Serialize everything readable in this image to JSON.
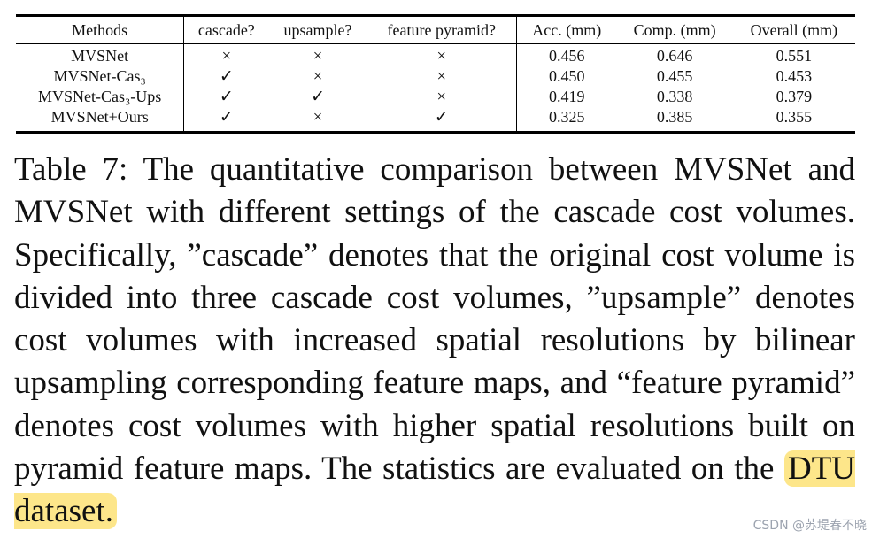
{
  "table": {
    "headers": [
      "Methods",
      "cascade?",
      "upsample?",
      "feature pyramid?",
      "Acc. (mm)",
      "Comp. (mm)",
      "Overall (mm)"
    ],
    "rows": [
      {
        "method": "MVSNet",
        "cascade": "×",
        "upsample": "×",
        "pyramid": "×",
        "acc": "0.456",
        "comp": "0.646",
        "overall": "0.551"
      },
      {
        "method": "MVSNet-Cas₃",
        "cascade": "✓",
        "upsample": "×",
        "pyramid": "×",
        "acc": "0.450",
        "comp": "0.455",
        "overall": "0.453"
      },
      {
        "method": "MVSNet-Cas₃-Ups",
        "cascade": "✓",
        "upsample": "✓",
        "pyramid": "×",
        "acc": "0.419",
        "comp": "0.338",
        "overall": "0.379"
      },
      {
        "method": "MVSNet+Ours",
        "cascade": "✓",
        "upsample": "×",
        "pyramid": "✓",
        "acc": "0.325",
        "comp": "0.385",
        "overall": "0.355"
      }
    ]
  },
  "caption": {
    "text": "Table 7: The quantitative comparison between MVSNet and MVSNet with different settings of the cascade cost volumes. Specifically, ”cascade” denotes that the original cost volume is divided into three cascade cost volumes, ”upsample” denotes cost volumes with increased spatial resolutions by bilinear upsampling corresponding feature maps, and “feature pyramid” denotes cost volumes with higher spatial resolutions built on pyramid feature maps. The statistics are evaluated on the ",
    "highlighted": "DTU dataset."
  },
  "watermark": "CSDN @苏堤春不晓"
}
